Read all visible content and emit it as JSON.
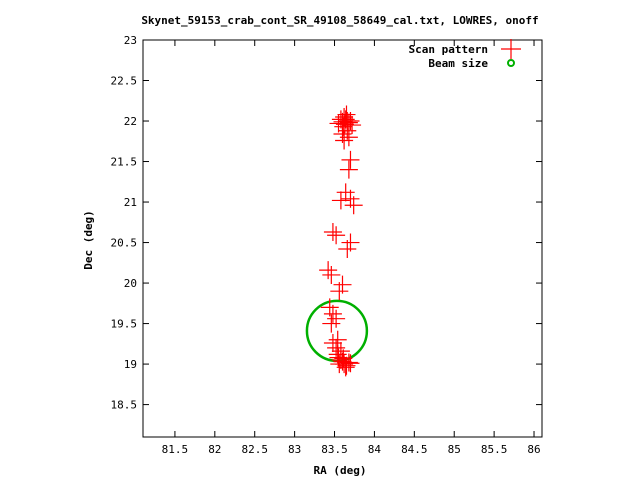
{
  "chart_data": {
    "type": "scatter",
    "title": "Skynet_59153_crab_cont_SR_49108_58649_cal.txt, LOWRES, onoff",
    "xlabel": "RA (deg)",
    "ylabel": "Dec (deg)",
    "xlim": [
      81.1,
      86.1
    ],
    "ylim": [
      18.1,
      23.0
    ],
    "xticks": [
      "81.5",
      "82",
      "82.5",
      "83",
      "83.5",
      "84",
      "84.5",
      "85",
      "85.5",
      "86"
    ],
    "yticks": [
      "18.5",
      "19",
      "19.5",
      "20",
      "20.5",
      "21",
      "21.5",
      "22",
      "22.5",
      "23"
    ],
    "grid": false,
    "legend_position": "top-right",
    "series": [
      {
        "name": "Scan pattern",
        "marker": "plus",
        "color": "#ff0000",
        "points": [
          [
            83.62,
            22.05
          ],
          [
            83.64,
            22.02
          ],
          [
            83.66,
            22.0
          ],
          [
            83.6,
            21.99
          ],
          [
            83.68,
            21.98
          ],
          [
            83.63,
            21.96
          ],
          [
            83.58,
            22.02
          ],
          [
            83.7,
            22.0
          ],
          [
            83.65,
            22.08
          ],
          [
            83.61,
            21.93
          ],
          [
            83.55,
            21.97
          ],
          [
            83.72,
            21.95
          ],
          [
            83.66,
            21.88
          ],
          [
            83.6,
            21.84
          ],
          [
            83.68,
            21.8
          ],
          [
            83.62,
            21.76
          ],
          [
            83.7,
            21.52
          ],
          [
            83.68,
            21.4
          ],
          [
            83.64,
            21.12
          ],
          [
            83.7,
            21.04
          ],
          [
            83.74,
            20.96
          ],
          [
            83.58,
            21.02
          ],
          [
            83.48,
            20.63
          ],
          [
            83.52,
            20.59
          ],
          [
            83.7,
            20.5
          ],
          [
            83.66,
            20.42
          ],
          [
            83.42,
            20.16
          ],
          [
            83.46,
            20.1
          ],
          [
            83.6,
            19.98
          ],
          [
            83.56,
            19.9
          ],
          [
            83.44,
            19.7
          ],
          [
            83.48,
            19.62
          ],
          [
            83.52,
            19.56
          ],
          [
            83.46,
            19.5
          ],
          [
            83.54,
            19.3
          ],
          [
            83.48,
            19.26
          ],
          [
            83.52,
            19.2
          ],
          [
            83.58,
            19.16
          ],
          [
            83.55,
            19.08
          ],
          [
            83.6,
            19.03
          ],
          [
            83.62,
            19.0
          ],
          [
            83.65,
            18.98
          ],
          [
            83.58,
            19.05
          ],
          [
            83.68,
            19.02
          ],
          [
            83.64,
            18.96
          ],
          [
            83.56,
            19.0
          ],
          [
            83.61,
            19.07
          ],
          [
            83.7,
            19.01
          ],
          [
            83.54,
            19.12
          ]
        ]
      },
      {
        "name": "Beam size",
        "marker": "circle",
        "color": "#00b000",
        "center": [
          83.53,
          19.41
        ],
        "radius_dec": 0.37
      }
    ]
  }
}
